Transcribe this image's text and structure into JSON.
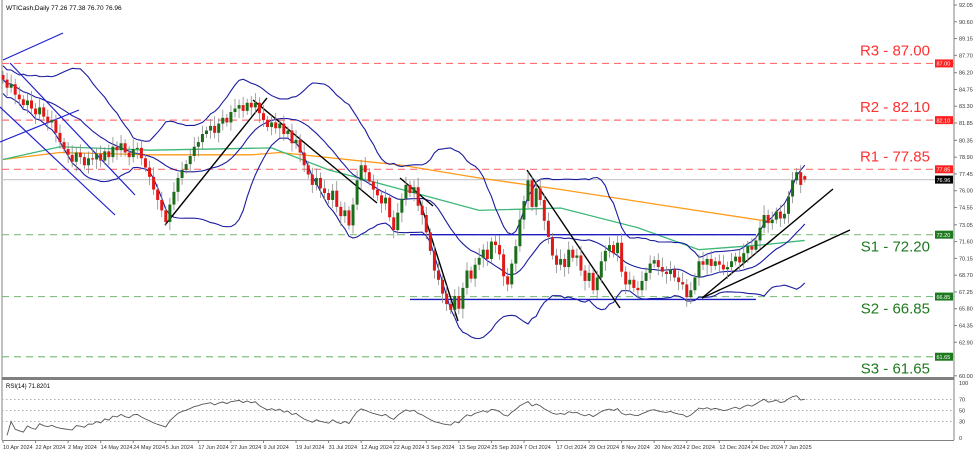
{
  "chart_data": {
    "type": "candlestick",
    "title": "WTICash,Daily 77.26 77.38 76.70 76.96",
    "symbol": "WTICash",
    "timeframe": "Daily",
    "last_ohlc": {
      "open": 77.26,
      "high": 77.38,
      "low": 76.7,
      "close": 76.96
    },
    "ylim": [
      60.0,
      92.05
    ],
    "y_ticks": [
      "92.05",
      "90.60",
      "89.15",
      "87.70",
      "86.20",
      "84.75",
      "83.30",
      "81.85",
      "80.35",
      "78.90",
      "77.45",
      "76.00",
      "74.55",
      "73.05",
      "71.60",
      "70.15",
      "68.70",
      "67.25",
      "65.80",
      "64.35",
      "62.90",
      "60.00"
    ],
    "x_ticks": [
      {
        "label": "10 Apr 2024",
        "bar": 0
      },
      {
        "label": "22 Apr 2024",
        "bar": 8
      },
      {
        "label": "2 May 2024",
        "bar": 16
      },
      {
        "label": "14 May 2024",
        "bar": 24
      },
      {
        "label": "24 May 2024",
        "bar": 32
      },
      {
        "label": "5 Jun 2024",
        "bar": 40
      },
      {
        "label": "17 Jun 2024",
        "bar": 48
      },
      {
        "label": "27 Jun 2024",
        "bar": 56
      },
      {
        "label": "9 Jul 2024",
        "bar": 64
      },
      {
        "label": "19 Jul 2024",
        "bar": 72
      },
      {
        "label": "31 Jul 2024",
        "bar": 80
      },
      {
        "label": "12 Aug 2024",
        "bar": 88
      },
      {
        "label": "22 Aug 2024",
        "bar": 96
      },
      {
        "label": "3 Sep 2024",
        "bar": 104
      },
      {
        "label": "13 Sep 2024",
        "bar": 112
      },
      {
        "label": "25 Sep 2024",
        "bar": 120
      },
      {
        "label": "7 Oct 2024",
        "bar": 128
      },
      {
        "label": "17 Oct 2024",
        "bar": 136
      },
      {
        "label": "29 Oct 2024",
        "bar": 144
      },
      {
        "label": "8 Nov 2024",
        "bar": 152
      },
      {
        "label": "20 Nov 2024",
        "bar": 160
      },
      {
        "label": "2 Dec 2024",
        "bar": 168
      },
      {
        "label": "12 Dec 2024",
        "bar": 176
      },
      {
        "label": "24 Dec 2024",
        "bar": 184
      },
      {
        "label": "7 Jan 2025",
        "bar": 192
      }
    ],
    "closes": [
      85.6,
      84.9,
      85.2,
      84.3,
      83.9,
      83.4,
      83.8,
      83.1,
      82.6,
      83.2,
      82.4,
      81.9,
      82.1,
      81.0,
      80.2,
      79.6,
      79.1,
      78.5,
      79.3,
      78.9,
      78.2,
      78.8,
      78.7,
      79.2,
      78.6,
      79.4,
      78.9,
      79.8,
      79.5,
      80.1,
      79.3,
      78.9,
      79.6,
      79.7,
      78.8,
      78.0,
      77.2,
      76.1,
      75.2,
      74.3,
      73.3,
      74.8,
      75.9,
      77.1,
      77.8,
      78.3,
      79.0,
      79.8,
      80.2,
      80.9,
      81.2,
      81.6,
      81.0,
      81.8,
      82.3,
      81.9,
      82.8,
      83.1,
      83.4,
      82.9,
      83.6,
      83.2,
      83.6,
      82.7,
      82.1,
      81.5,
      81.9,
      81.4,
      81.8,
      80.9,
      81.2,
      80.1,
      80.4,
      79.3,
      78.2,
      77.4,
      76.5,
      77.1,
      76.2,
      75.8,
      75.2,
      76.0,
      74.6,
      73.8,
      74.3,
      73.0,
      74.8,
      76.9,
      78.2,
      77.6,
      76.8,
      76.1,
      75.6,
      74.9,
      75.4,
      73.7,
      72.6,
      74.1,
      75.3,
      76.5,
      75.8,
      76.3,
      74.7,
      73.9,
      72.4,
      70.8,
      69.1,
      68.3,
      67.1,
      66.2,
      65.7,
      66.9,
      65.8,
      67.6,
      69.1,
      68.4,
      69.6,
      70.2,
      70.9,
      70.1,
      71.6,
      71.3,
      70.5,
      68.6,
      67.9,
      69.7,
      71.2,
      73.5,
      75.1,
      76.9,
      74.6,
      76.2,
      75.2,
      73.4,
      72.0,
      70.4,
      69.6,
      70.1,
      69.4,
      70.9,
      70.2,
      70.4,
      69.1,
      68.2,
      68.9,
      67.4,
      68.5,
      69.9,
      70.8,
      71.3,
      70.6,
      71.5,
      69.0,
      67.9,
      68.3,
      67.6,
      67.4,
      68.2,
      68.9,
      69.7,
      70.0,
      69.4,
      69.0,
      68.8,
      69.2,
      68.5,
      68.1,
      67.9,
      66.8,
      67.4,
      68.5,
      69.9,
      69.6,
      70.1,
      69.5,
      69.9,
      69.6,
      69.2,
      69.4,
      69.9,
      70.3,
      69.8,
      70.6,
      71.2,
      70.9,
      71.7,
      72.8,
      73.9,
      73.2,
      73.5,
      74.2,
      73.6,
      74.0,
      75.5,
      76.9,
      77.6,
      76.5,
      76.96
    ],
    "moving_average_orange": [
      [
        0,
        78.7
      ],
      [
        14,
        79.3
      ],
      [
        36,
        79.1
      ],
      [
        61,
        79.1
      ],
      [
        68,
        79.3
      ],
      [
        98,
        78.2
      ],
      [
        117,
        77.1
      ],
      [
        137,
        76.1
      ],
      [
        161,
        74.8
      ],
      [
        189,
        73.3
      ]
    ],
    "moving_average_green": [
      [
        0,
        78.7
      ],
      [
        14,
        79.8
      ],
      [
        36,
        79.5
      ],
      [
        66,
        79.7
      ],
      [
        80,
        77.8
      ],
      [
        98,
        76.1
      ],
      [
        117,
        74.3
      ],
      [
        137,
        74.5
      ],
      [
        156,
        72.8
      ],
      [
        171,
        70.9
      ],
      [
        186,
        71.3
      ],
      [
        197,
        71.7
      ]
    ],
    "bollinger_bands": {
      "period": 20,
      "deviations": 2
    },
    "levels": [
      {
        "name": "R3",
        "value": 87.0,
        "label": "R3 - 87.00",
        "tag": "87.00",
        "color": "#ff3030"
      },
      {
        "name": "R2",
        "value": 82.1,
        "label": "R2 - 82.10",
        "tag": "82.10",
        "color": "#ff3030"
      },
      {
        "name": "R1",
        "value": 77.85,
        "label": "R1 - 77.85",
        "tag": "77.85",
        "color": "#ff3030"
      },
      {
        "name": "S1",
        "value": 72.2,
        "label": "S1 - 72.20",
        "tag": "72.20",
        "color": "#1e7a1e"
      },
      {
        "name": "S2",
        "value": 66.85,
        "label": "S2 - 66.85",
        "tag": "66.85",
        "color": "#1e7a1e"
      },
      {
        "name": "S3",
        "value": 61.65,
        "label": "S3 - 61.65",
        "tag": "61.65",
        "color": "#1e7a1e"
      }
    ],
    "current_price": {
      "value": 76.96,
      "tag": "76.96"
    },
    "range_lines": [
      {
        "value": 72.2,
        "from_bar": 100,
        "to_bar": 185
      },
      {
        "value": 66.6,
        "from_bar": 100,
        "to_bar": 185
      }
    ],
    "colors": {
      "bull": "#1a6e1a",
      "bear": "#e01818",
      "wick": "#8a8a8a",
      "bands": "#1c1ca0",
      "orange_ma": "#ff9a1a",
      "green_ma": "#3cb878",
      "trendline": "#000000",
      "channel": "#2020d0",
      "resistance": "#ff7070",
      "support": "#80c080"
    },
    "rsi": {
      "label": "RSI(14) 71.8201",
      "period": 14,
      "value": 71.8201,
      "ylim": [
        0,
        100
      ],
      "levels": [
        70,
        50,
        30
      ],
      "ticks": [
        "100",
        "70",
        "50",
        "30",
        "0"
      ]
    }
  }
}
